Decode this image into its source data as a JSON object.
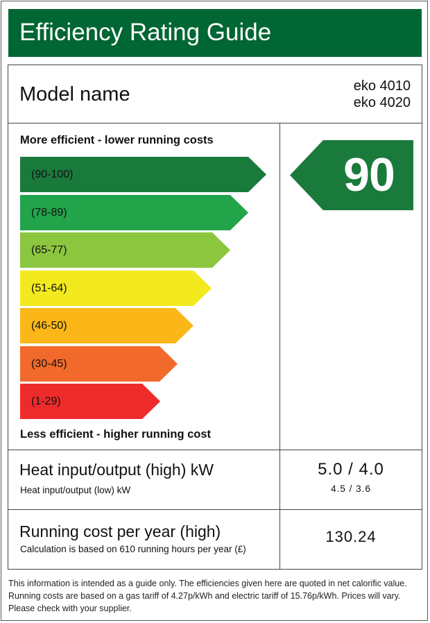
{
  "title": "Efficiency Rating Guide",
  "model": {
    "label": "Model name",
    "values": [
      "eko 4010",
      "eko 4020"
    ]
  },
  "scale": {
    "top_caption": "More efficient - lower running costs",
    "bottom_caption": "Less efficient - higher running cost",
    "bands": [
      {
        "label": "(90-100)",
        "color": "#1a7a3c"
      },
      {
        "label": "(78-89)",
        "color": "#21a44a"
      },
      {
        "label": "(65-77)",
        "color": "#8cc63f"
      },
      {
        "label": "(51-64)",
        "color": "#f2ea1e"
      },
      {
        "label": "(46-50)",
        "color": "#fbb717"
      },
      {
        "label": "(30-45)",
        "color": "#f26a2b"
      },
      {
        "label": "(1-29)",
        "color": "#ee2b2b"
      }
    ]
  },
  "rating": {
    "value": "90",
    "color": "#1a7a3c"
  },
  "heat": {
    "label": "Heat input/output (high) kW",
    "sublabel": "Heat input/output (low) kW",
    "value_high": "5.0 / 4.0",
    "value_low": "4.5 / 3.6"
  },
  "running_cost": {
    "label": "Running cost per year (high)",
    "sublabel": "Calculation is based on 610 running hours per year (£)",
    "value": "130.24"
  },
  "disclaimer": "This information is intended as a guide only. The efficiencies given here are quoted in net calorific value. Running costs are based on a gas tariff of 4.27p/kWh and electric tariff of 15.76p/kWh. Prices will vary. Please check with your supplier.",
  "colors": {
    "title_bar": "#006633",
    "border": "#444444"
  }
}
